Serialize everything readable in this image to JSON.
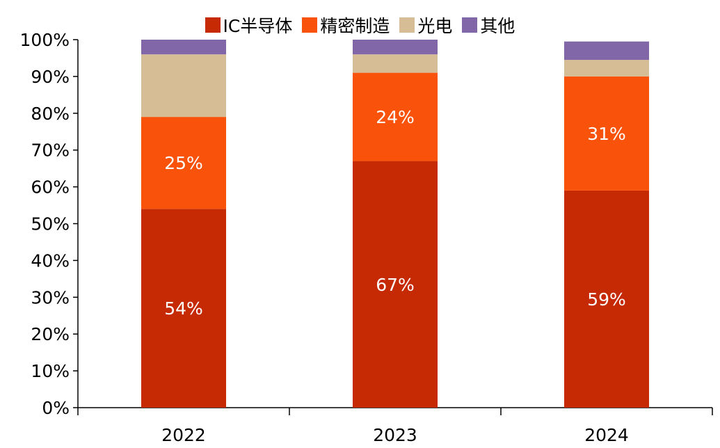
{
  "chart_data": {
    "type": "bar",
    "stacked": true,
    "categories": [
      "2022",
      "2023",
      "2024"
    ],
    "series": [
      {
        "name": "IC半导体",
        "color": "#C62A04",
        "values": [
          54,
          67,
          59
        ],
        "labels": [
          "54%",
          "67%",
          "59%"
        ]
      },
      {
        "name": "精密制造",
        "color": "#F9520A",
        "values": [
          25,
          24,
          31
        ],
        "labels": [
          "25%",
          "24%",
          "31%"
        ]
      },
      {
        "name": "光电",
        "color": "#D7BD96",
        "values": [
          17,
          5,
          4.5
        ],
        "labels": [
          "",
          "",
          ""
        ]
      },
      {
        "name": "其他",
        "color": "#8166A8",
        "values": [
          4,
          4,
          5
        ],
        "labels": [
          "",
          "",
          ""
        ]
      }
    ],
    "ylim": [
      0,
      100
    ],
    "yticks": [
      "0%",
      "10%",
      "20%",
      "30%",
      "40%",
      "50%",
      "60%",
      "70%",
      "80%",
      "90%",
      "100%"
    ],
    "legend_position": "top-center",
    "grid": false
  }
}
